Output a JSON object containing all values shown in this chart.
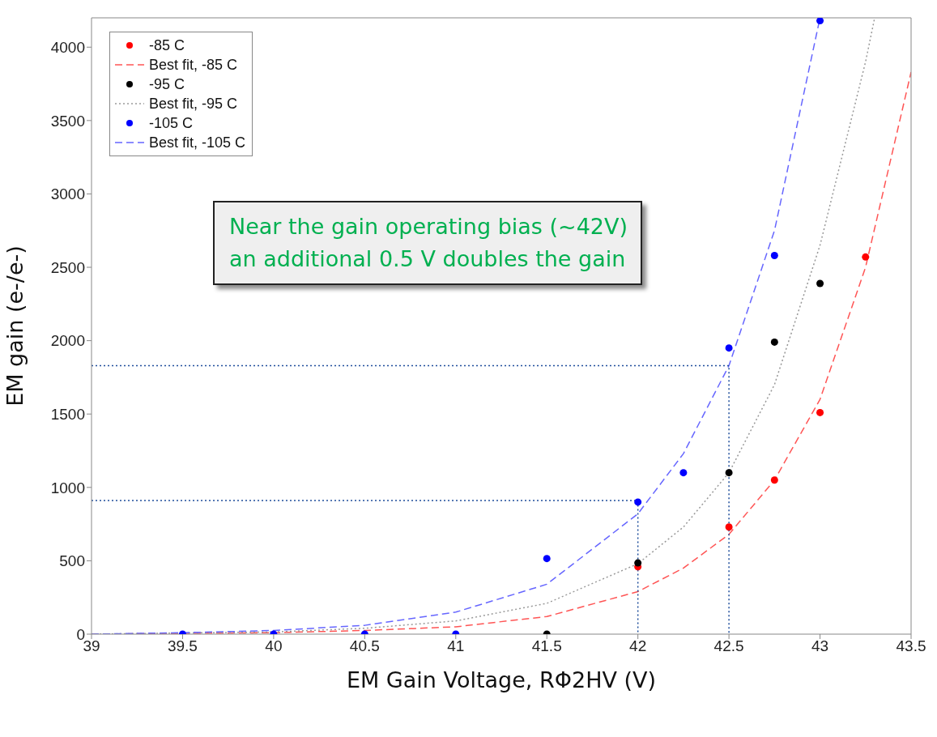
{
  "chart_data": {
    "type": "scatter",
    "xlabel": "EM Gain Voltage, RΦ2HV (V)",
    "ylabel": "EM gain (e-/e-)",
    "annotations": [
      "Near the gain operating bias (~42V)\nan additional 0.5 V doubles the gain"
    ],
    "xlim": [
      39,
      43.5
    ],
    "xticks": [
      39,
      39.5,
      40,
      40.5,
      41,
      41.5,
      42,
      42.5,
      43,
      43.5
    ],
    "ylim": [
      0,
      4200
    ],
    "yticks": [
      0,
      500,
      1000,
      1500,
      2000,
      2500,
      3000,
      3500,
      4000
    ],
    "legend": "top left",
    "series": [
      {
        "name": "-85 C",
        "marker": "circle",
        "color": "#ff0000",
        "x": [
          42,
          42.5,
          42.75,
          43,
          43.25
        ],
        "values": [
          459,
          730,
          1050,
          1510,
          2570
        ]
      },
      {
        "name": "Best fit, -85 C",
        "type": "line",
        "marker": "none",
        "line_style": "dashed",
        "color": "#ff5555",
        "x": [
          39,
          40,
          40.5,
          41,
          41.5,
          42,
          42.25,
          42.5,
          42.75,
          43,
          43.25,
          43.5
        ],
        "values": [
          0,
          10,
          25,
          50,
          120,
          290,
          450,
          680,
          1050,
          1600,
          2500,
          3830
        ]
      },
      {
        "name": "-95 C",
        "marker": "circle",
        "color": "#000000",
        "x": [
          41.5,
          42,
          42.5,
          42.75,
          43
        ],
        "values": [
          0,
          485,
          1100,
          1990,
          2390
        ]
      },
      {
        "name": "Best fit, -95 C",
        "type": "line",
        "marker": "none",
        "line_style": "dotted",
        "color": "#999999",
        "x": [
          39,
          40,
          40.5,
          41,
          41.5,
          42,
          42.25,
          42.5,
          42.75,
          43,
          43.25,
          43.3
        ],
        "values": [
          0,
          15,
          40,
          90,
          210,
          480,
          730,
          1100,
          1700,
          2650,
          3900,
          4200
        ]
      },
      {
        "name": "-105 C",
        "marker": "circle",
        "color": "#0000ff",
        "x": [
          39.5,
          40,
          40.5,
          41,
          41.5,
          42,
          42.25,
          42.5,
          42.75,
          43
        ],
        "values": [
          0,
          0,
          0,
          0,
          515,
          900,
          1100,
          1950,
          2580,
          4180
        ]
      },
      {
        "name": "Best fit, -105 C",
        "type": "line",
        "marker": "none",
        "line_style": "dashed",
        "color": "#6666ff",
        "x": [
          39,
          39.5,
          40,
          40.5,
          41,
          41.5,
          42,
          42.25,
          42.5,
          42.75,
          43
        ],
        "values": [
          0,
          10,
          25,
          60,
          150,
          340,
          820,
          1230,
          1830,
          2750,
          4200
        ]
      },
      {
        "type": "line",
        "marker": "none",
        "line_style": "dotted",
        "color": "#1f4e9c",
        "x": [
          39,
          42,
          42
        ],
        "values": [
          910,
          910,
          0
        ]
      },
      {
        "type": "line",
        "marker": "none",
        "line_style": "dotted",
        "color": "#1f4e9c",
        "x": [
          39,
          42.5,
          42.5
        ],
        "values": [
          1830,
          1830,
          0
        ]
      }
    ]
  }
}
